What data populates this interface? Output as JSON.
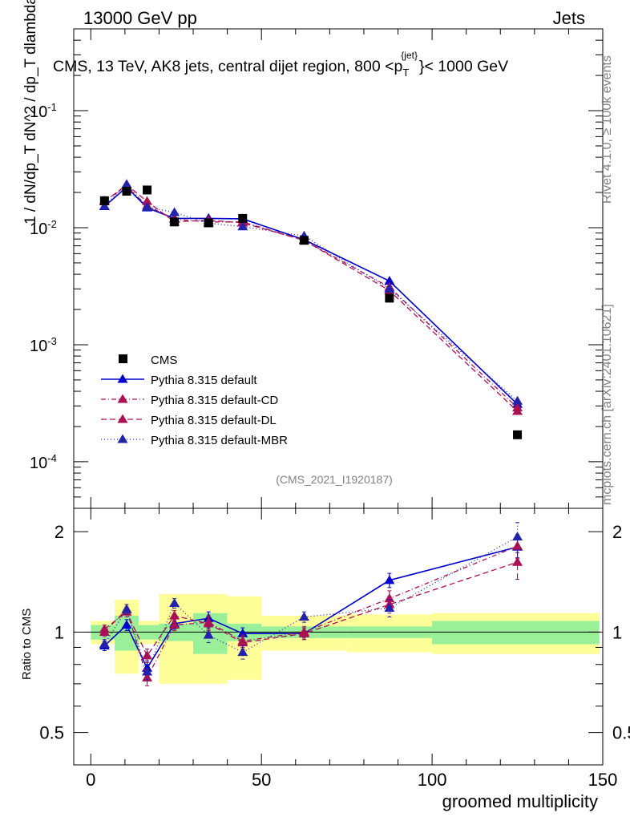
{
  "header": {
    "left_label": "13000 GeV pp",
    "right_label": "Jets"
  },
  "side_labels": {
    "rivet": "Rivet 4.1.0, ≥ 100k events",
    "mcplots": "mcplots.cern.ch [arXiv:2401.10621]"
  },
  "chart_data": {
    "type": "scatter",
    "title": "CMS, 13 TeV, AK8 jets, central dijet region, 800 <p_T^{jet}< 1000 GeV",
    "title_parts": {
      "main": "CMS, 13 TeV, AK8 jets, central dijet region, 800 <p",
      "sub": "T",
      "sup": "{jet}",
      "rest": "}< 1000 GeV"
    },
    "analysis_id": "(CMS_2021_I1920187)",
    "xlabel": "groomed multiplicity",
    "ylabel_top": "1 / dN/dp_T dN^2 / dp_T dlambda",
    "ylabel_ratio": "Ratio to CMS",
    "xlim": [
      -5,
      150
    ],
    "ylim_main": [
      4e-05,
      0.5
    ],
    "ylim_ratio": [
      0.4,
      2.35
    ],
    "y_scale_main": "log",
    "y_scale_ratio": "log",
    "x_ticks": [
      0,
      50,
      100,
      150
    ],
    "y_ticks_main": [
      "10^{-1}",
      "10^{-2}",
      "10^{-3}",
      "10^{-4}"
    ],
    "y_ticks_ratio": [
      "2",
      "1",
      "0.5"
    ],
    "legend_position": "lower-left",
    "x": [
      4,
      10.5,
      16.5,
      24.5,
      34.5,
      44.5,
      62.5,
      87.5,
      125
    ],
    "bin_edges": [
      0,
      7,
      14,
      20,
      30,
      40,
      50,
      75,
      100,
      150
    ],
    "cms": {
      "name": "CMS",
      "values": [
        0.017,
        0.0205,
        0.021,
        0.0112,
        0.011,
        0.012,
        0.0078,
        0.0025,
        0.00017
      ],
      "band_inner": [
        0.05,
        0.12,
        0.05,
        0.06,
        0.14,
        0.06,
        0.04,
        0.04,
        0.08
      ],
      "band_outer": [
        0.08,
        0.25,
        0.08,
        0.3,
        0.3,
        0.28,
        0.12,
        0.13,
        0.14
      ]
    },
    "series": [
      {
        "name": "Pythia 8.315 default",
        "color": "#0000cc",
        "dash": "solid",
        "values": [
          0.0152,
          0.0222,
          0.0148,
          0.012,
          0.012,
          0.0119,
          0.0079,
          0.0035,
          0.00031
        ],
        "ratio": [
          0.91,
          1.05,
          0.78,
          1.06,
          1.1,
          0.99,
          0.99,
          1.43,
          1.8
        ],
        "ratio_err": [
          0.03,
          0.04,
          0.04,
          0.04,
          0.05,
          0.04,
          0.04,
          0.07,
          0.13
        ]
      },
      {
        "name": "Pythia 8.315 default-CD",
        "color": "#aa1155",
        "dash": "6,3,1,3",
        "values": [
          0.017,
          0.0224,
          0.0154,
          0.0118,
          0.0112,
          0.0112,
          0.0078,
          0.0031,
          0.00029
        ],
        "ratio": [
          1.0,
          1.17,
          0.73,
          1.05,
          1.07,
          0.94,
          1.0,
          1.26,
          1.81
        ],
        "ratio_err": [
          0.03,
          0.04,
          0.04,
          0.04,
          0.05,
          0.04,
          0.04,
          0.07,
          0.15
        ]
      },
      {
        "name": "Pythia 8.315 default-DL",
        "color": "#aa1155",
        "dash": "7,4",
        "values": [
          0.0167,
          0.0232,
          0.0168,
          0.0112,
          0.0116,
          0.011,
          0.0078,
          0.0029,
          0.00027
        ],
        "ratio": [
          1.02,
          1.15,
          0.85,
          1.12,
          1.06,
          0.93,
          0.99,
          1.21,
          1.62
        ],
        "ratio_err": [
          0.03,
          0.04,
          0.04,
          0.04,
          0.05,
          0.04,
          0.04,
          0.07,
          0.18
        ]
      },
      {
        "name": "Pythia 8.315 default-MBR",
        "color": "#2222aa",
        "dash": "1,3",
        "values": [
          0.0153,
          0.0235,
          0.015,
          0.0135,
          0.0109,
          0.0102,
          0.0085,
          0.003,
          0.00033
        ],
        "ratio": [
          0.92,
          1.17,
          0.76,
          1.22,
          0.98,
          0.87,
          1.11,
          1.18,
          1.93
        ],
        "ratio_err": [
          0.03,
          0.04,
          0.04,
          0.04,
          0.05,
          0.04,
          0.04,
          0.07,
          0.2
        ]
      }
    ]
  }
}
